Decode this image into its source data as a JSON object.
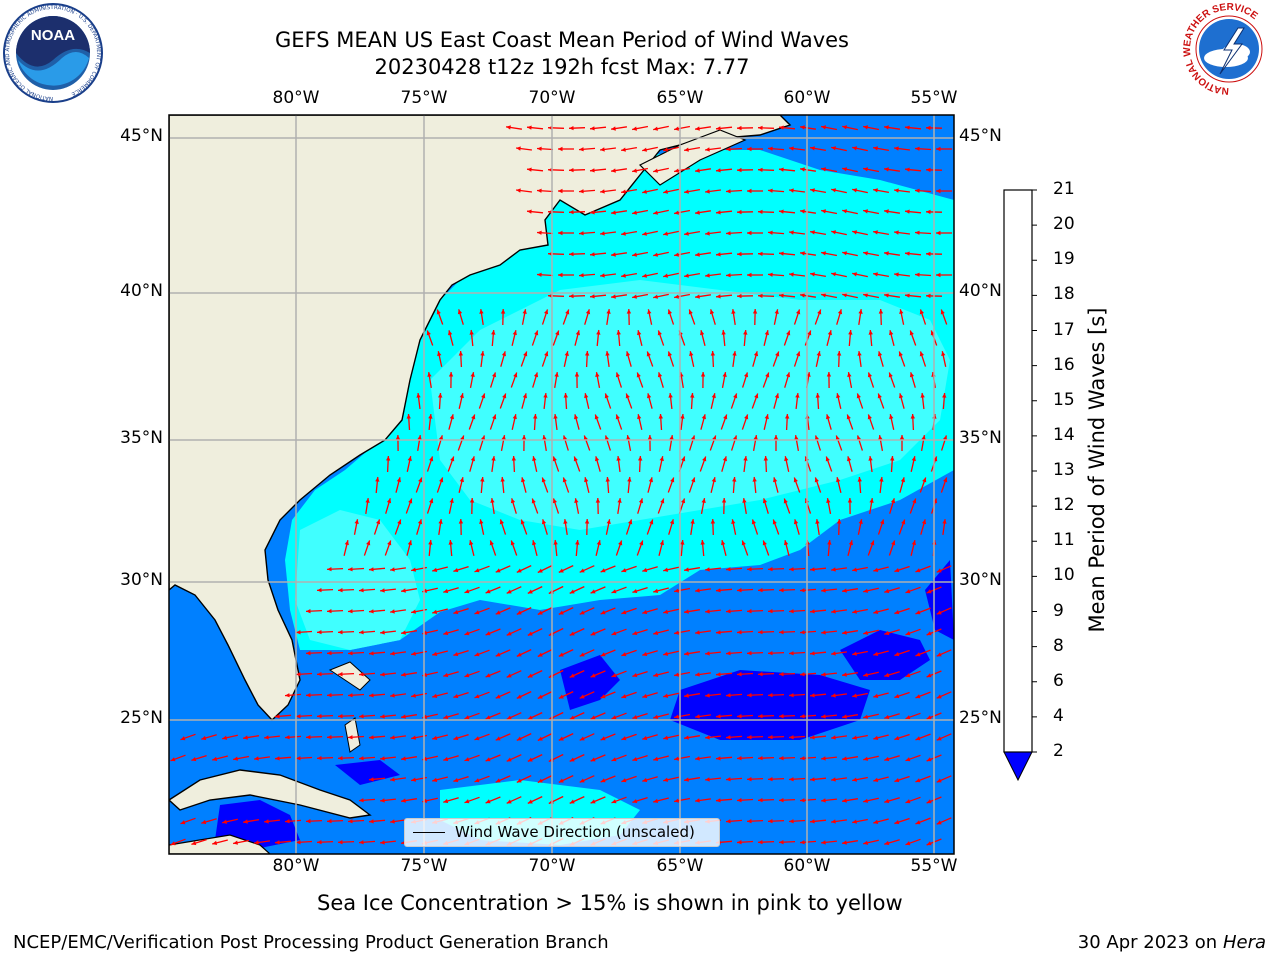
{
  "header": {
    "title_line1": "GEFS MEAN US East Coast Mean Period of Wind Waves",
    "title_line2": "20230428 t12z 192h fcst   Max: 7.77"
  },
  "logos": {
    "left": "NOAA",
    "left_ring": "NATIONAL OCEANIC AND ATMOSPHERIC ADMINISTRATION · U.S. DEPARTMENT OF COMMERCE",
    "right_ring": "NATIONAL WEATHER SERVICE"
  },
  "map": {
    "lon_labels": [
      "80°W",
      "75°W",
      "70°W",
      "65°W",
      "60°W",
      "55°W"
    ],
    "lat_labels": [
      "45°N",
      "40°N",
      "35°N",
      "30°N",
      "25°N"
    ],
    "legend_label": "Wind Wave Direction (unscaled)",
    "colors": {
      "land": "#efeedd",
      "coast": "#000000",
      "grid": "#b0b0b0",
      "arrows": "#ff0000"
    }
  },
  "colorbar": {
    "label": "Mean Period of Wind Waves [s]",
    "ticks": [
      "2",
      "4",
      "6",
      "8",
      "9",
      "10",
      "11",
      "12",
      "13",
      "14",
      "15",
      "16",
      "17",
      "18",
      "19",
      "20",
      "21"
    ],
    "colors": [
      "#0000ff",
      "#0080ff",
      "#00ffff",
      "#40ffff",
      "#a0ffff",
      "#50ff80",
      "#00e000",
      "#60e000",
      "#a8e800",
      "#d0f000",
      "#f0f000",
      "#ffff00",
      "#ffc000",
      "#ffa000",
      "#ff8000",
      "#ff4000",
      "#ff2000",
      "#ff0000"
    ]
  },
  "captions": {
    "sea_ice": "Sea Ice Concentration > 15% is shown in pink to yellow",
    "credit": "NCEP/EMC/Verification Post Processing Product Generation Branch",
    "date_prefix": "30 Apr 2023 on",
    "host": "Hera"
  }
}
